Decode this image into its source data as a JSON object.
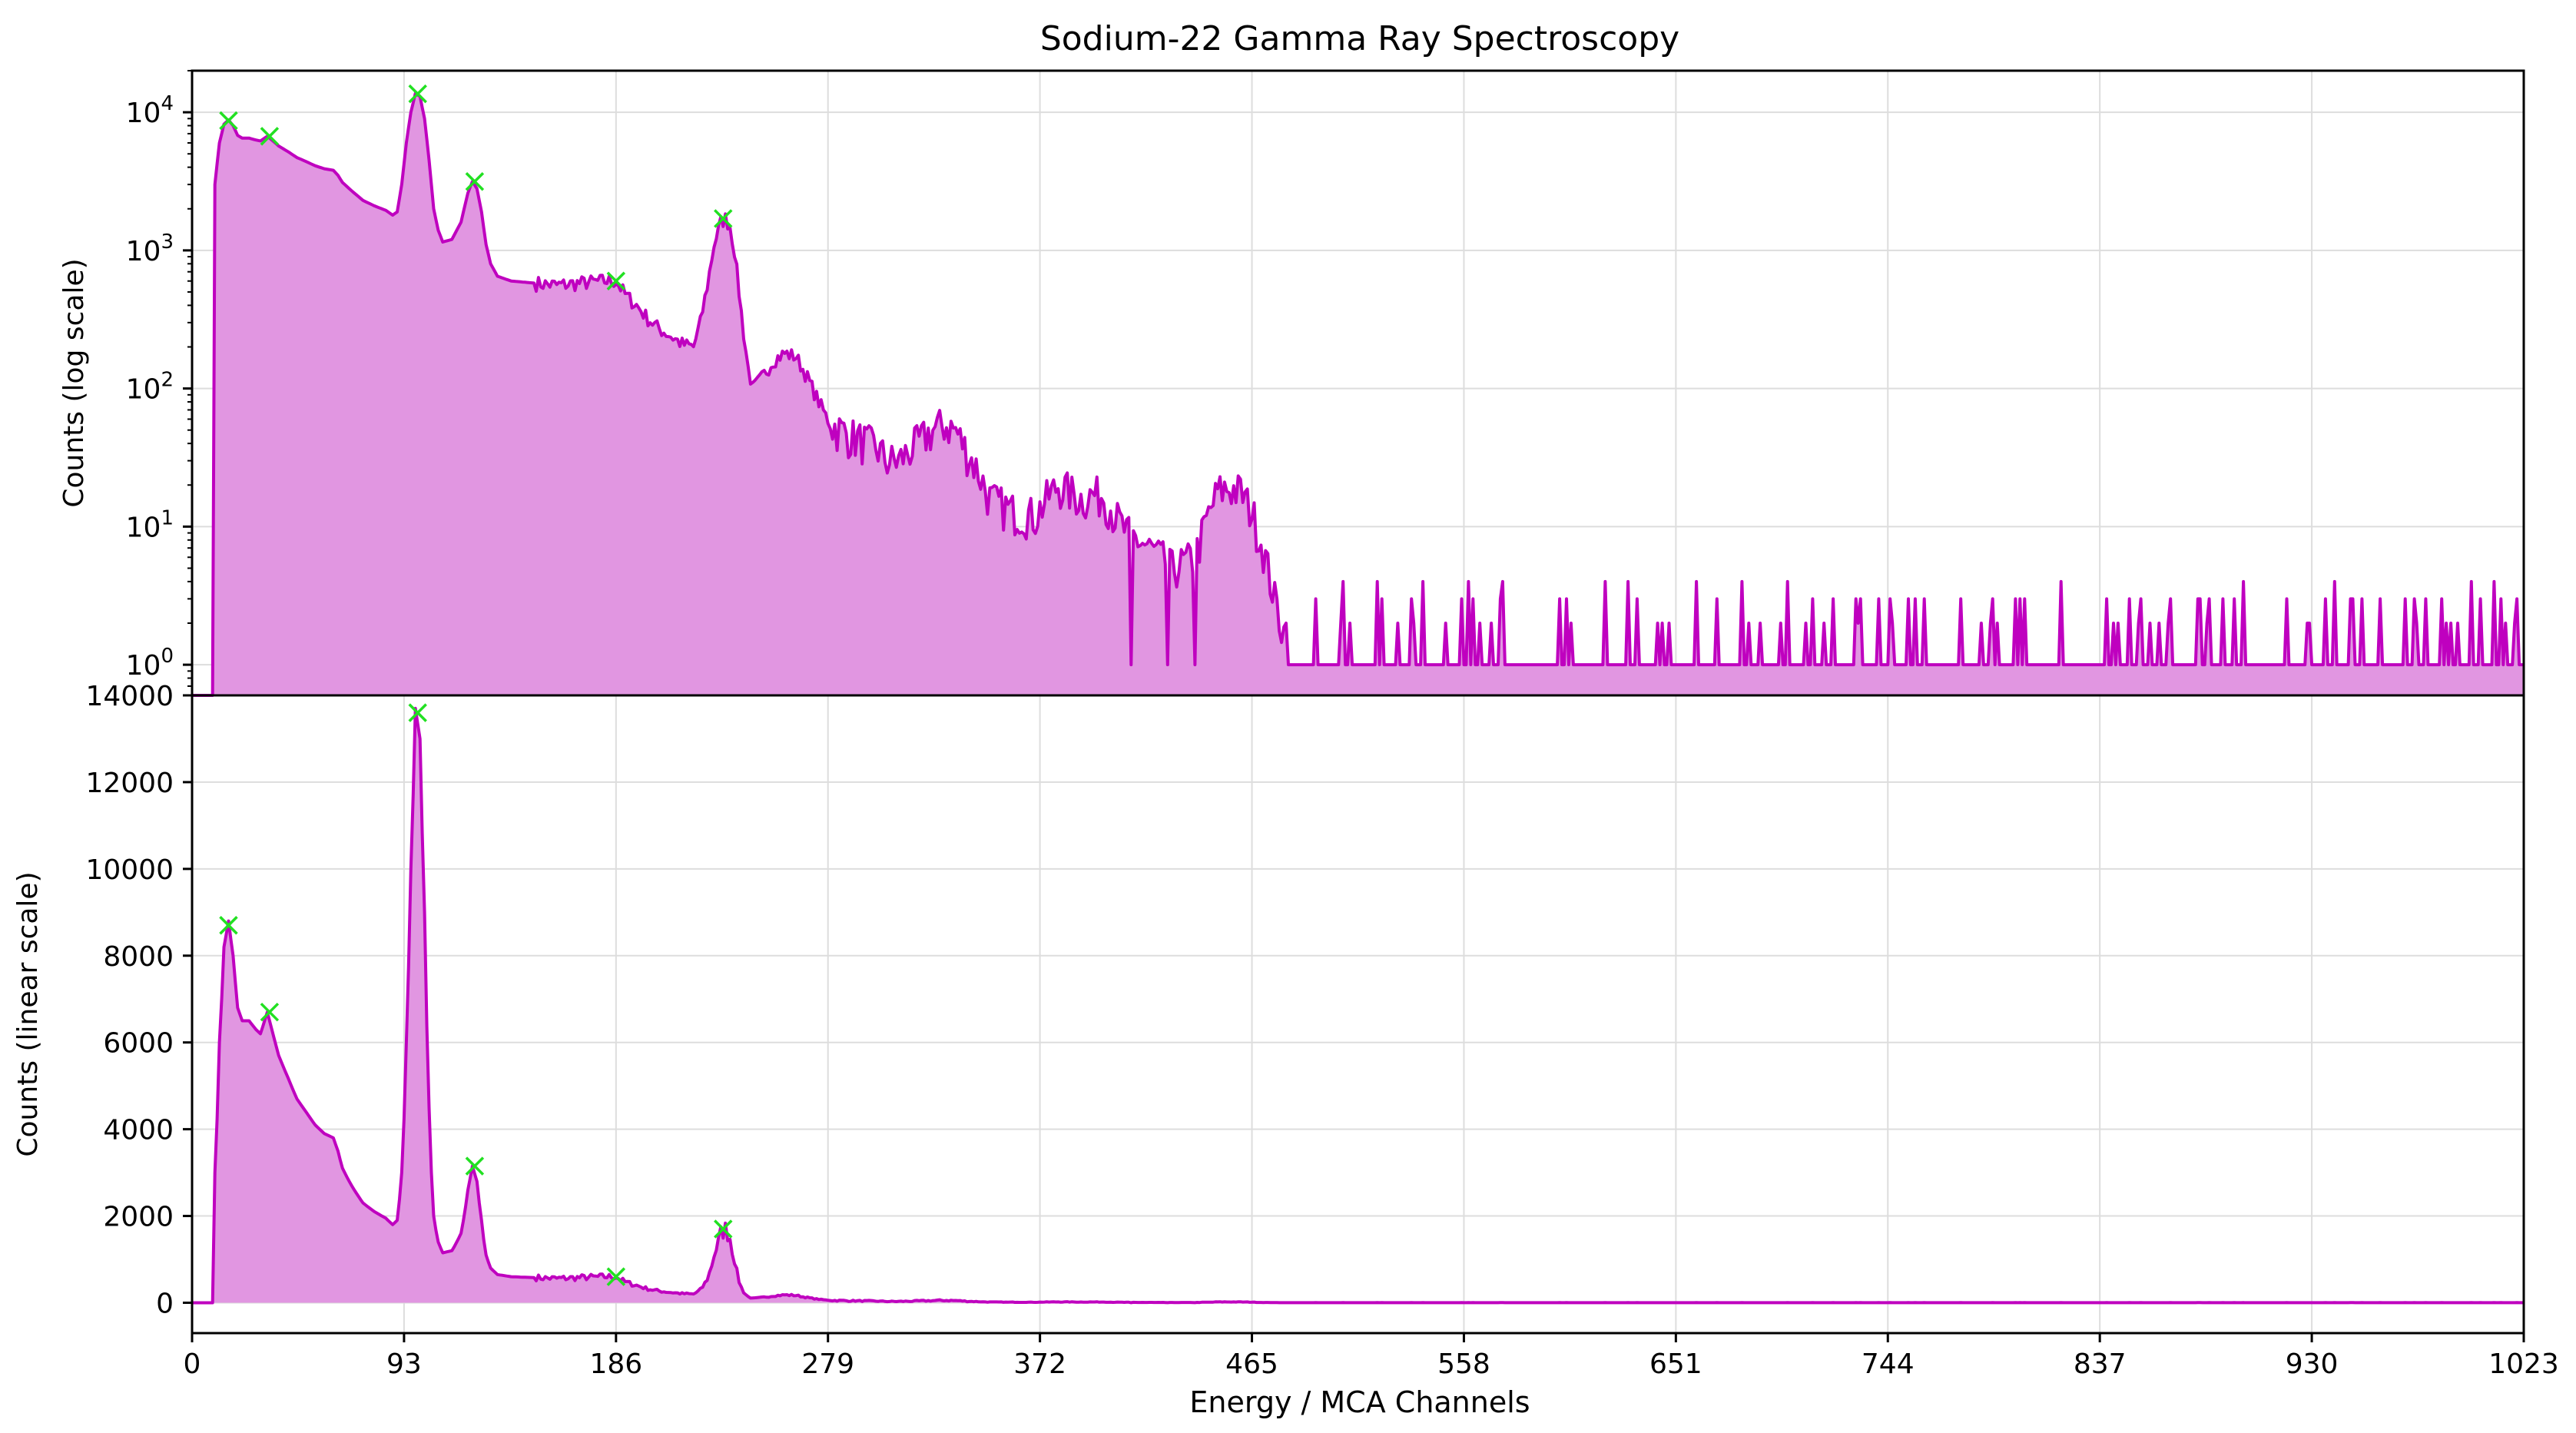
{
  "chart_data": {
    "type": "area",
    "title": "Sodium-22 Gamma Ray Spectroscopy",
    "xlabel": "Energy / MCA Channels",
    "xlim": [
      0,
      1023
    ],
    "x_ticks": [
      "0",
      "93",
      "186",
      "279",
      "372",
      "465",
      "558",
      "651",
      "744",
      "837",
      "930",
      "1023"
    ],
    "panels": [
      {
        "name": "log",
        "ylabel": "Counts (log scale)",
        "scale": "log",
        "ylim": [
          0.6,
          20000
        ],
        "y_ticks": [
          {
            "value": 1,
            "base": "10",
            "exp": "0"
          },
          {
            "value": 10,
            "base": "10",
            "exp": "1"
          },
          {
            "value": 100,
            "base": "10",
            "exp": "2"
          },
          {
            "value": 1000,
            "base": "10",
            "exp": "3"
          },
          {
            "value": 10000,
            "base": "10",
            "exp": "4"
          }
        ]
      },
      {
        "name": "linear",
        "ylabel": "Counts (linear scale)",
        "scale": "linear",
        "ylim": [
          -700,
          14000
        ],
        "y_ticks": [
          {
            "value": 0,
            "label": "0"
          },
          {
            "value": 2000,
            "label": "2000"
          },
          {
            "value": 4000,
            "label": "4000"
          },
          {
            "value": 6000,
            "label": "6000"
          },
          {
            "value": 8000,
            "label": "8000"
          },
          {
            "value": 10000,
            "label": "10000"
          },
          {
            "value": 12000,
            "label": "12000"
          },
          {
            "value": 14000,
            "label": "14000"
          }
        ]
      }
    ],
    "spectrum_profile": [
      [
        0,
        0
      ],
      [
        9,
        0
      ],
      [
        10,
        3000
      ],
      [
        12,
        6000
      ],
      [
        14,
        8200
      ],
      [
        16,
        8800
      ],
      [
        18,
        8000
      ],
      [
        20,
        6800
      ],
      [
        22,
        6500
      ],
      [
        25,
        6500
      ],
      [
        28,
        6300
      ],
      [
        30,
        6200
      ],
      [
        33,
        6700
      ],
      [
        35,
        6300
      ],
      [
        38,
        5700
      ],
      [
        42,
        5200
      ],
      [
        46,
        4700
      ],
      [
        50,
        4400
      ],
      [
        54,
        4100
      ],
      [
        58,
        3900
      ],
      [
        62,
        3800
      ],
      [
        64,
        3500
      ],
      [
        66,
        3100
      ],
      [
        70,
        2700
      ],
      [
        75,
        2300
      ],
      [
        80,
        2100
      ],
      [
        85,
        1950
      ],
      [
        88,
        1800
      ],
      [
        90,
        1900
      ],
      [
        92,
        3000
      ],
      [
        94,
        6000
      ],
      [
        96,
        10000
      ],
      [
        98,
        13700
      ],
      [
        100,
        13000
      ],
      [
        102,
        9000
      ],
      [
        104,
        4500
      ],
      [
        106,
        2000
      ],
      [
        108,
        1400
      ],
      [
        110,
        1150
      ],
      [
        114,
        1200
      ],
      [
        118,
        1600
      ],
      [
        121,
        2600
      ],
      [
        123,
        3150
      ],
      [
        125,
        2800
      ],
      [
        127,
        1900
      ],
      [
        129,
        1100
      ],
      [
        131,
        800
      ],
      [
        134,
        650
      ],
      [
        140,
        600
      ],
      [
        150,
        580
      ],
      [
        160,
        560
      ],
      [
        170,
        580
      ],
      [
        180,
        600
      ],
      [
        186,
        600
      ],
      [
        190,
        480
      ],
      [
        195,
        400
      ],
      [
        200,
        320
      ],
      [
        205,
        270
      ],
      [
        210,
        240
      ],
      [
        215,
        210
      ],
      [
        220,
        200
      ],
      [
        223,
        300
      ],
      [
        226,
        550
      ],
      [
        229,
        1100
      ],
      [
        232,
        1600
      ],
      [
        234,
        1700
      ],
      [
        236,
        1500
      ],
      [
        238,
        1000
      ],
      [
        240,
        500
      ],
      [
        242,
        250
      ],
      [
        244,
        140
      ],
      [
        246,
        100
      ],
      [
        250,
        120
      ],
      [
        255,
        160
      ],
      [
        260,
        180
      ],
      [
        265,
        170
      ],
      [
        270,
        120
      ],
      [
        275,
        80
      ],
      [
        280,
        55
      ],
      [
        290,
        45
      ],
      [
        300,
        38
      ],
      [
        305,
        30
      ],
      [
        310,
        30
      ],
      [
        318,
        40
      ],
      [
        325,
        50
      ],
      [
        330,
        55
      ],
      [
        335,
        50
      ],
      [
        340,
        35
      ],
      [
        345,
        25
      ],
      [
        350,
        16
      ],
      [
        360,
        13
      ],
      [
        370,
        12
      ],
      [
        375,
        16
      ],
      [
        380,
        20
      ],
      [
        385,
        18
      ],
      [
        390,
        16
      ],
      [
        395,
        17
      ],
      [
        400,
        17
      ],
      [
        405,
        12
      ],
      [
        410,
        9
      ],
      [
        415,
        8
      ],
      [
        420,
        7
      ],
      [
        425,
        6
      ],
      [
        430,
        5
      ],
      [
        440,
        6
      ],
      [
        445,
        11
      ],
      [
        450,
        18
      ],
      [
        455,
        19
      ],
      [
        460,
        18
      ],
      [
        465,
        13
      ],
      [
        470,
        7
      ],
      [
        475,
        3
      ],
      [
        480,
        1.5
      ],
      [
        490,
        1
      ],
      [
        500,
        1
      ],
      [
        1023,
        1
      ]
    ],
    "spike_channels": [
      505,
      520,
      540,
      560,
      575,
      600,
      620,
      630,
      660,
      680,
      700,
      720,
      740,
      760,
      790,
      800,
      820,
      850,
      880,
      900,
      940,
      960,
      980,
      1000,
      1010,
      1020
    ],
    "dip_channels": [
      412,
      428,
      440
    ],
    "peaks": [
      {
        "x": 16,
        "y": 8700
      },
      {
        "x": 34,
        "y": 6700
      },
      {
        "x": 99,
        "y": 13600
      },
      {
        "x": 124,
        "y": 3150
      },
      {
        "x": 186,
        "y": 600
      },
      {
        "x": 233,
        "y": 1700
      }
    ],
    "colors": {
      "line": "#bf00bf",
      "fill": "#e196e1",
      "marker": "#22e022",
      "grid": "#dddddd",
      "axis": "#000000"
    },
    "grid": true,
    "legend": "none"
  }
}
